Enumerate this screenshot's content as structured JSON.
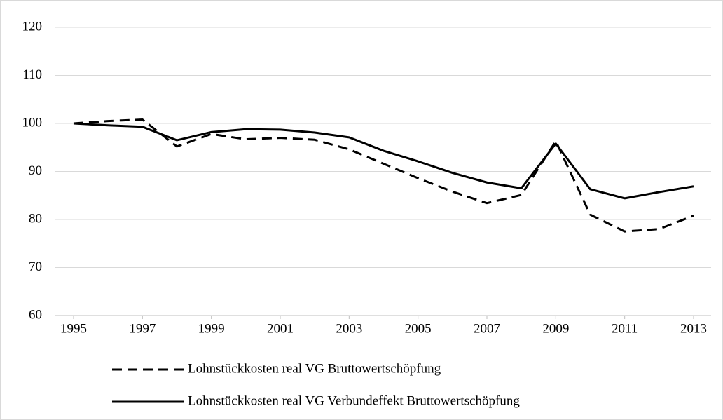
{
  "chart_data": {
    "type": "line",
    "x": [
      1995,
      1996,
      1997,
      1998,
      1999,
      2000,
      2001,
      2002,
      2003,
      2004,
      2005,
      2006,
      2007,
      2008,
      2009,
      2010,
      2011,
      2012,
      2013
    ],
    "series": [
      {
        "name": "Lohnstückkosten real VG Bruttowertschöpfung",
        "color": "#000000",
        "dashed": true,
        "values": [
          100,
          100.5,
          100.8,
          95.2,
          97.8,
          96.7,
          97.0,
          96.6,
          94.6,
          91.6,
          88.6,
          85.8,
          83.4,
          85.1,
          96.3,
          81.0,
          77.5,
          78.0,
          80.8
        ]
      },
      {
        "name": "Lohnstückkosten real VG Verbundeffekt Bruttowertschöpfung",
        "color": "#000000",
        "dashed": false,
        "values": [
          100,
          99.6,
          99.3,
          96.5,
          98.2,
          98.8,
          98.7,
          98.1,
          97.1,
          94.3,
          92.1,
          89.7,
          87.7,
          86.5,
          95.8,
          86.3,
          84.4,
          85.7,
          86.9
        ]
      }
    ],
    "xlim": [
      1995,
      2013
    ],
    "xticks": [
      1995,
      1997,
      1999,
      2001,
      2003,
      2005,
      2007,
      2009,
      2011,
      2013
    ],
    "ylim": [
      60,
      120
    ],
    "yticks": [
      60,
      70,
      80,
      90,
      100,
      110,
      120
    ],
    "grid": true,
    "legend": "bottom"
  }
}
